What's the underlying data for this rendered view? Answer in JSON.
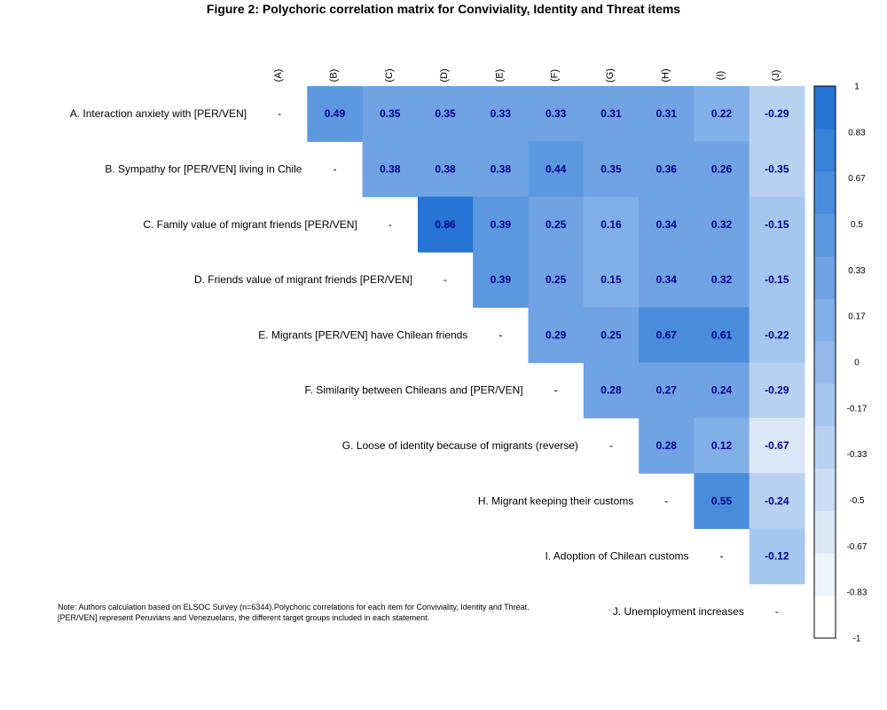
{
  "chart_data": {
    "type": "heatmap",
    "title": "Figure 2: Polychoric correlation matrix for Conviviality, Identity and Threat items",
    "row_labels": [
      "A. Interaction anxiety with [PER/VEN]",
      "B. Sympathy for [PER/VEN] living in Chile",
      "C. Family value of migrant friends [PER/VEN]",
      "D. Friends value of migrant friends [PER/VEN]",
      "E. Migrants [PER/VEN] have Chilean friends",
      "F. Similarity between Chileans and [PER/VEN]",
      "G. Loose of identity because of migrants (reverse)",
      "H. Migrant keeping their customs",
      "I. Adoption of Chilean customs",
      "J. Unemployment increases"
    ],
    "col_labels": [
      "(A)",
      "(B)",
      "(C)",
      "(D)",
      "(E)",
      "(F)",
      "(G)",
      "(H)",
      "(I)",
      "(J)"
    ],
    "diagonal_mark": "-",
    "values": [
      [
        null,
        0.49,
        0.35,
        0.35,
        0.33,
        0.33,
        0.31,
        0.31,
        0.22,
        -0.29
      ],
      [
        null,
        null,
        0.38,
        0.38,
        0.38,
        0.44,
        0.35,
        0.36,
        0.26,
        -0.35
      ],
      [
        null,
        null,
        null,
        0.86,
        0.39,
        0.25,
        0.16,
        0.34,
        0.32,
        -0.15
      ],
      [
        null,
        null,
        null,
        null,
        0.39,
        0.25,
        0.15,
        0.34,
        0.32,
        -0.15
      ],
      [
        null,
        null,
        null,
        null,
        null,
        0.29,
        0.25,
        0.67,
        0.61,
        -0.22
      ],
      [
        null,
        null,
        null,
        null,
        null,
        null,
        0.28,
        0.27,
        0.24,
        -0.29
      ],
      [
        null,
        null,
        null,
        null,
        null,
        null,
        null,
        0.28,
        0.12,
        -0.67
      ],
      [
        null,
        null,
        null,
        null,
        null,
        null,
        null,
        null,
        0.55,
        -0.24
      ],
      [
        null,
        null,
        null,
        null,
        null,
        null,
        null,
        null,
        null,
        -0.12
      ],
      [
        null,
        null,
        null,
        null,
        null,
        null,
        null,
        null,
        null,
        null
      ]
    ],
    "legend": {
      "ticks": [
        "1",
        "0.83",
        "0.67",
        "0.5",
        "0.33",
        "0.17",
        "0",
        "-0.17",
        "-0.33",
        "-0.5",
        "-0.67",
        "-0.83",
        "-1"
      ],
      "range": [
        -1,
        1
      ],
      "colors": [
        "#FFFFFF",
        "#EEF4FC",
        "#DCE8F8",
        "#CADDF5",
        "#B8D1F1",
        "#A5C6EE",
        "#93BAEA",
        "#81AFE7",
        "#6FA3E3",
        "#5C98E0",
        "#4A8CDC",
        "#3881D9",
        "#2675D5"
      ],
      "placement": "right"
    },
    "note": [
      "Note: Authors calculation based on ELSOC Survey (n=6344).Polychoric correlations for each item for Conviviality, Identity and Threat.",
      "[PER/VEN] represent Peruvians and Venezuelans, the different target groups included in each statement."
    ]
  }
}
